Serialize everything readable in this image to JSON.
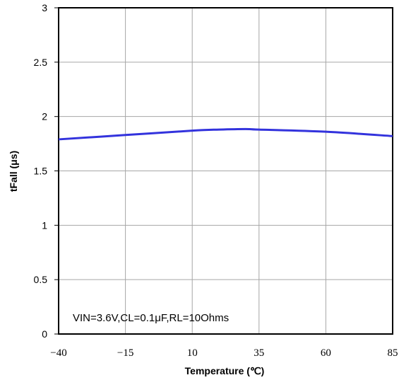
{
  "chart_data": {
    "type": "line",
    "xlabel": "Temperature (℃)",
    "ylabel": "tFall (μs)",
    "xlim": [
      -40,
      85
    ],
    "ylim": [
      0,
      3
    ],
    "x_ticks": [
      "-40",
      "-15",
      "10",
      "35",
      "60",
      "85"
    ],
    "y_ticks": [
      "0",
      "0.5",
      "1",
      "1.5",
      "2",
      "2.5",
      "3"
    ],
    "grid": true,
    "annotation": "VIN=3.6V,CL=0.1μF,RL=10Ohms",
    "series": [
      {
        "x": [
          -40,
          -15,
          10,
          20,
          30,
          35,
          60,
          85
        ],
        "values": [
          1.79,
          1.83,
          1.87,
          1.88,
          1.885,
          1.88,
          1.86,
          1.82
        ]
      }
    ],
    "colors": {
      "line": "#3333dd",
      "grid": "#a6a6a6",
      "axis": "#000000"
    }
  }
}
